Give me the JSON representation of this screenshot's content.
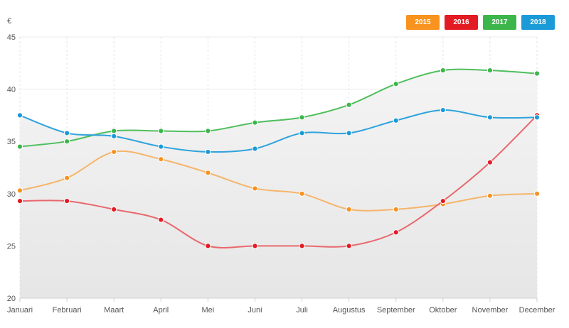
{
  "chart_data": {
    "type": "line",
    "ylabel": "€",
    "categories": [
      "Januari",
      "Februari",
      "Maart",
      "April",
      "Mei",
      "Juni",
      "Juli",
      "Augustus",
      "September",
      "Oktober",
      "November",
      "December"
    ],
    "ylim": [
      20,
      45
    ],
    "yticks": [
      "20",
      "25",
      "30",
      "35",
      "40",
      "45"
    ],
    "grid": true,
    "legend_position": "top-right",
    "series": [
      {
        "name": "2015",
        "color": "#f7931e",
        "values": [
          30.3,
          31.5,
          34.0,
          33.3,
          32.0,
          30.5,
          30.0,
          28.5,
          28.5,
          29.0,
          29.8,
          30.0
        ]
      },
      {
        "name": "2016",
        "color": "#e31c24",
        "values": [
          29.3,
          29.3,
          28.5,
          27.5,
          25.0,
          25.0,
          25.0,
          25.0,
          26.3,
          29.3,
          33.0,
          37.5
        ]
      },
      {
        "name": "2017",
        "color": "#3cb64a",
        "values": [
          34.5,
          35.0,
          36.0,
          36.0,
          36.0,
          36.8,
          37.3,
          38.5,
          40.5,
          41.8,
          41.8,
          41.5
        ]
      },
      {
        "name": "2018",
        "color": "#1b9ad8",
        "values": [
          37.5,
          35.8,
          35.5,
          34.5,
          34.0,
          34.3,
          35.8,
          35.8,
          37.0,
          38.0,
          37.3,
          37.3
        ]
      }
    ]
  }
}
